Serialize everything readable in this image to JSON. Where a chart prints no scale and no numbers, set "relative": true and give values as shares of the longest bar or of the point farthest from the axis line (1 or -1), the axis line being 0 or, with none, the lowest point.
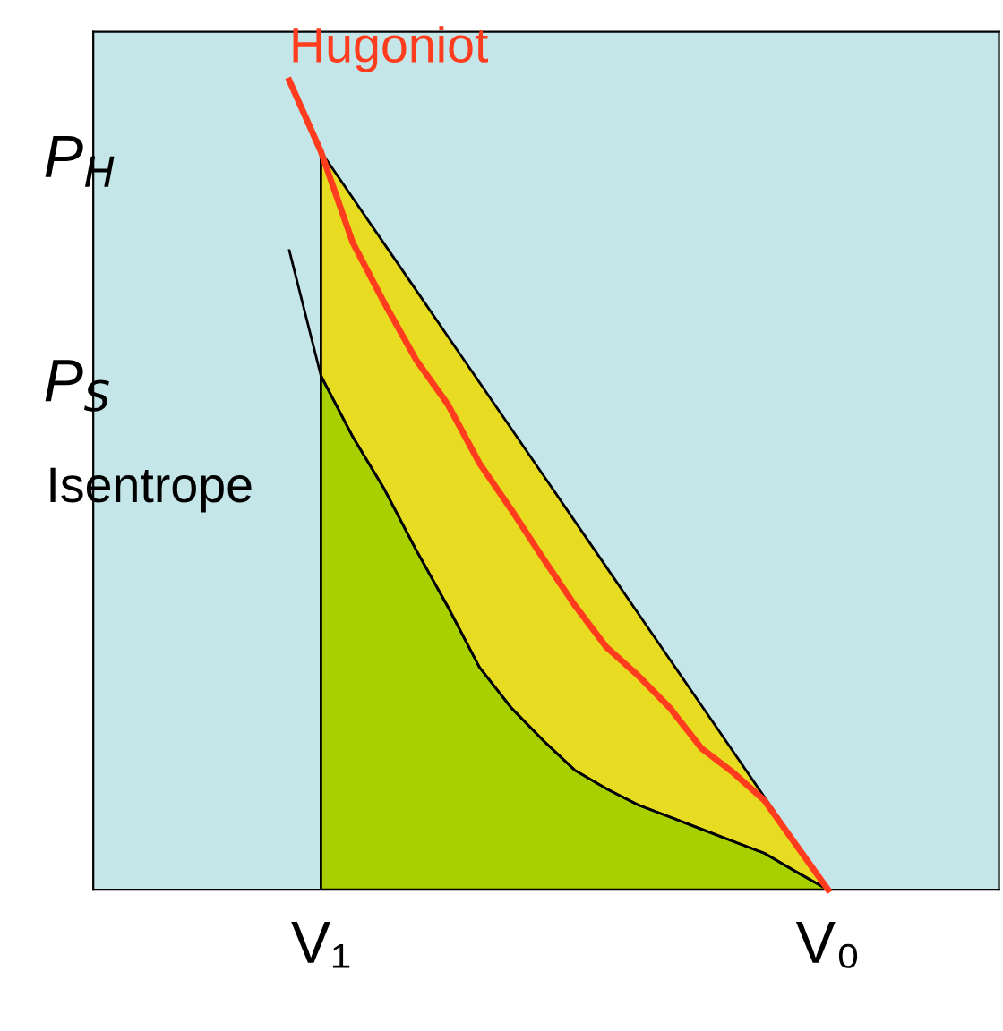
{
  "chart_data": {
    "type": "line",
    "relative": true,
    "categories": [
      null,
      "V₁",
      null,
      null,
      null,
      null,
      null,
      null,
      null,
      null,
      null,
      null,
      null,
      null,
      null,
      null,
      null,
      "V₀"
    ],
    "tick_labels": "x",
    "series": [
      {
        "type": "area",
        "color": "#e8dc22",
        "values": [
          null,
          0.912,
          0.855,
          0.798,
          0.741,
          0.684,
          0.627,
          0.57,
          0.513,
          0.456,
          0.399,
          0.342,
          0.285,
          0.228,
          0.171,
          0.114,
          0.057,
          0
        ]
      },
      {
        "type": "area",
        "color": "#a8d000",
        "values": [
          null,
          0.635,
          0.56,
          0.495,
          0.42,
          0.35,
          0.275,
          0.225,
          0.185,
          0.148,
          0.125,
          0.105,
          0.09,
          0.075,
          0.06,
          0.045,
          0.022,
          0
        ]
      },
      {
        "name": "Isentrope",
        "color": "#000000",
        "values": [
          0.79,
          0.635,
          0.56,
          0.495,
          0.42,
          0.35,
          0.275,
          0.225,
          0.185,
          0.148,
          0.125,
          0.105,
          0.09,
          0.075,
          0.06,
          0.045,
          0.022,
          0
        ]
      },
      {
        "name": "Hugoniot",
        "color": "#ff3c1e",
        "values": [
          1.0,
          0.912,
          0.8,
          0.725,
          0.655,
          0.6,
          0.527,
          0.47,
          0.41,
          0.352,
          0.3,
          0.265,
          0.225,
          0.175,
          0.145,
          0.11,
          0.055,
          0
        ]
      }
    ],
    "annotations": [
      "P$_{H}$",
      "P$_{S}$"
    ],
    "grid": false,
    "legend": false
  }
}
